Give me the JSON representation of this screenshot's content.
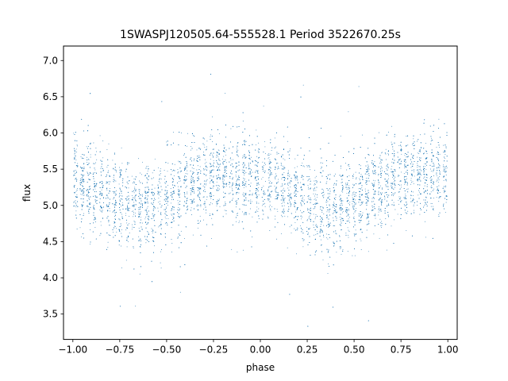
{
  "chart_data": {
    "type": "scatter",
    "title": "1SWASPJ120505.64-555528.1 Period 3522670.25s",
    "xlabel": "phase",
    "ylabel": "flux",
    "xlim": [
      -1.05,
      1.05
    ],
    "ylim": [
      3.15,
      7.2
    ],
    "x_ticks": [
      -1.0,
      -0.75,
      -0.5,
      -0.25,
      0.0,
      0.25,
      0.5,
      0.75,
      1.0
    ],
    "x_tick_labels": [
      "−1.00",
      "−0.75",
      "−0.50",
      "−0.25",
      "0.00",
      "0.25",
      "0.50",
      "0.75",
      "1.00"
    ],
    "y_ticks": [
      3.5,
      4.0,
      4.5,
      5.0,
      5.5,
      6.0,
      6.5,
      7.0
    ],
    "y_tick_labels": [
      "3.5",
      "4.0",
      "4.5",
      "5.0",
      "5.5",
      "6.0",
      "6.5",
      "7.0"
    ],
    "grid": false,
    "marker_color": "#1f77b4",
    "trend": {
      "description_points_phase": [
        -1.0,
        -0.9,
        -0.75,
        -0.65,
        -0.5,
        -0.35,
        -0.2,
        -0.1,
        0.0,
        0.1,
        0.25,
        0.35,
        0.5,
        0.65,
        0.8,
        0.9,
        1.0
      ],
      "description_points_flux": [
        5.4,
        5.25,
        5.05,
        4.95,
        5.05,
        5.3,
        5.45,
        5.35,
        5.35,
        5.25,
        5.05,
        4.95,
        5.0,
        5.25,
        5.45,
        5.4,
        5.4
      ]
    }
  }
}
